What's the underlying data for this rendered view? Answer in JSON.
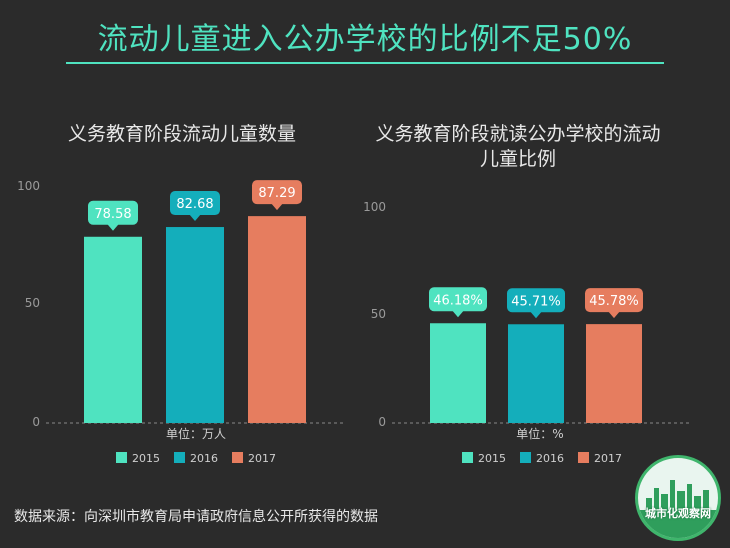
{
  "headline": "流动儿童进入公办学校的比例不足50%",
  "source": "数据来源：向深圳市教育局申请政府信息公开所获得的数据",
  "logo_text": "城市化观察网",
  "colors": {
    "2015": "#4fe3c0",
    "2016": "#14aebb",
    "2017": "#e67d5f",
    "text": "#e8e8e8",
    "axis": "#9a9a9a"
  },
  "chart_data": [
    {
      "type": "bar",
      "title": "义务教育阶段流动儿童数量",
      "unit": "单位：万人",
      "categories": [
        "2015",
        "2016",
        "2017"
      ],
      "values": [
        78.58,
        82.68,
        87.29
      ],
      "labels": [
        "78.58",
        "82.68",
        "87.29"
      ],
      "ylim": [
        0,
        100
      ],
      "yticks": [
        "100",
        "50",
        "0"
      ],
      "legend": [
        "2015",
        "2016",
        "2017"
      ]
    },
    {
      "type": "bar",
      "title": "义务教育阶段就读公办学校的流动儿童比例",
      "unit": "单位：%",
      "categories": [
        "2015",
        "2016",
        "2017"
      ],
      "values": [
        46.18,
        45.71,
        45.78
      ],
      "labels": [
        "46.18%",
        "45.71%",
        "45.78%"
      ],
      "ylim": [
        0,
        100
      ],
      "yticks": [
        "100",
        "50",
        "0"
      ],
      "legend": [
        "2015",
        "2016",
        "2017"
      ]
    }
  ]
}
